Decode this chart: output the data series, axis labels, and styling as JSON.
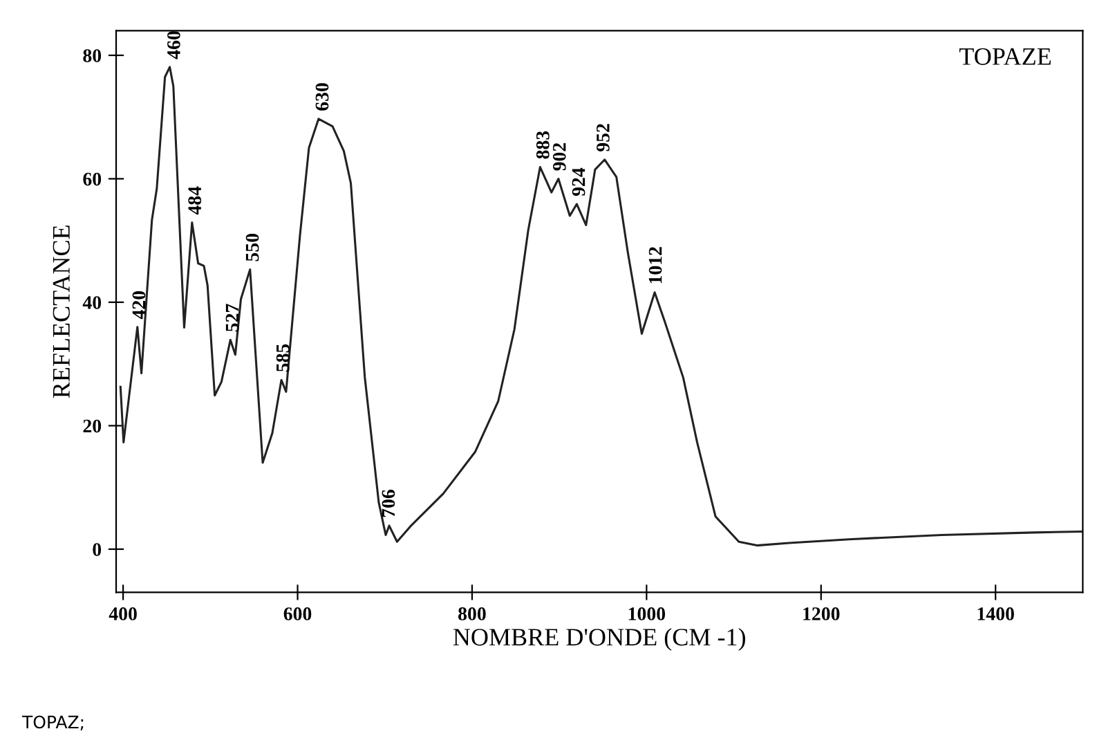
{
  "chart_data": {
    "type": "line",
    "title": "TOPAZE",
    "xlabel": "NOMBRE D'ONDE (CM -1)",
    "ylabel": "REFLECTANCE",
    "x": [
      397,
      400.5,
      416.4,
      421,
      433,
      438.6,
      448,
      453.5,
      457.6,
      470,
      479,
      486,
      492.6,
      496.8,
      505,
      512.7,
      523,
      528.6,
      535,
      545.5,
      560,
      571,
      581.4,
      586.8,
      602.7,
      613,
      624,
      640,
      653,
      661,
      677,
      693,
      701,
      705,
      714,
      730,
      767,
      803.7,
      830,
      848.5,
      864.4,
      878,
      891,
      899,
      912,
      920,
      930.6,
      941,
      952,
      965.4,
      978.6,
      994.5,
      1009.3,
      1021,
      1042,
      1058,
      1079,
      1105.8,
      1126.5,
      1163.5,
      1232,
      1338,
      1444,
      1500
    ],
    "series": [
      {
        "color": "#222222",
        "values": [
          26.3,
          17.3,
          36.0,
          28.5,
          53.3,
          58.4,
          76.5,
          78.1,
          75.0,
          35.9,
          52.9,
          46.3,
          45.9,
          42.7,
          24.9,
          27.1,
          33.9,
          31.5,
          40.5,
          45.3,
          14.0,
          18.8,
          27.4,
          25.5,
          50.8,
          65.0,
          69.7,
          68.5,
          64.5,
          59.3,
          27.9,
          7.6,
          2.3,
          3.8,
          1.2,
          3.8,
          9.0,
          15.8,
          24.0,
          35.6,
          51.7,
          61.9,
          57.8,
          60.0,
          54.0,
          55.9,
          52.5,
          61.5,
          63.1,
          60.3,
          48.0,
          34.9,
          41.6,
          36.8,
          27.8,
          17.3,
          5.3,
          1.2,
          0.6,
          1.0,
          1.6,
          2.3,
          2.7,
          2.85
        ]
      }
    ],
    "xlim": [
      392,
      1500
    ],
    "ylim": [
      -7,
      84
    ],
    "xticks": [
      400,
      600,
      800,
      1000,
      1200,
      1400
    ],
    "yticks": [
      0,
      20,
      40,
      60,
      80
    ],
    "grid": false,
    "legend": false,
    "marker": "none",
    "line_style": "solid",
    "annotations": [
      {
        "text": "420",
        "x": 420,
        "y": 36.0
      },
      {
        "text": "460",
        "x": 460,
        "y": 78.1
      },
      {
        "text": "484",
        "x": 484,
        "y": 52.9
      },
      {
        "text": "527",
        "x": 527,
        "y": 33.9
      },
      {
        "text": "550",
        "x": 550,
        "y": 45.3
      },
      {
        "text": "585",
        "x": 585,
        "y": 27.4
      },
      {
        "text": "630",
        "x": 630,
        "y": 69.7
      },
      {
        "text": "706",
        "x": 706,
        "y": 3.8
      },
      {
        "text": "883",
        "x": 883,
        "y": 61.9
      },
      {
        "text": "902",
        "x": 902,
        "y": 60.0
      },
      {
        "text": "924",
        "x": 924,
        "y": 55.9
      },
      {
        "text": "952",
        "x": 952,
        "y": 63.1
      },
      {
        "text": "1012",
        "x": 1012,
        "y": 41.6
      },
      "TOPAZ;"
    ]
  }
}
